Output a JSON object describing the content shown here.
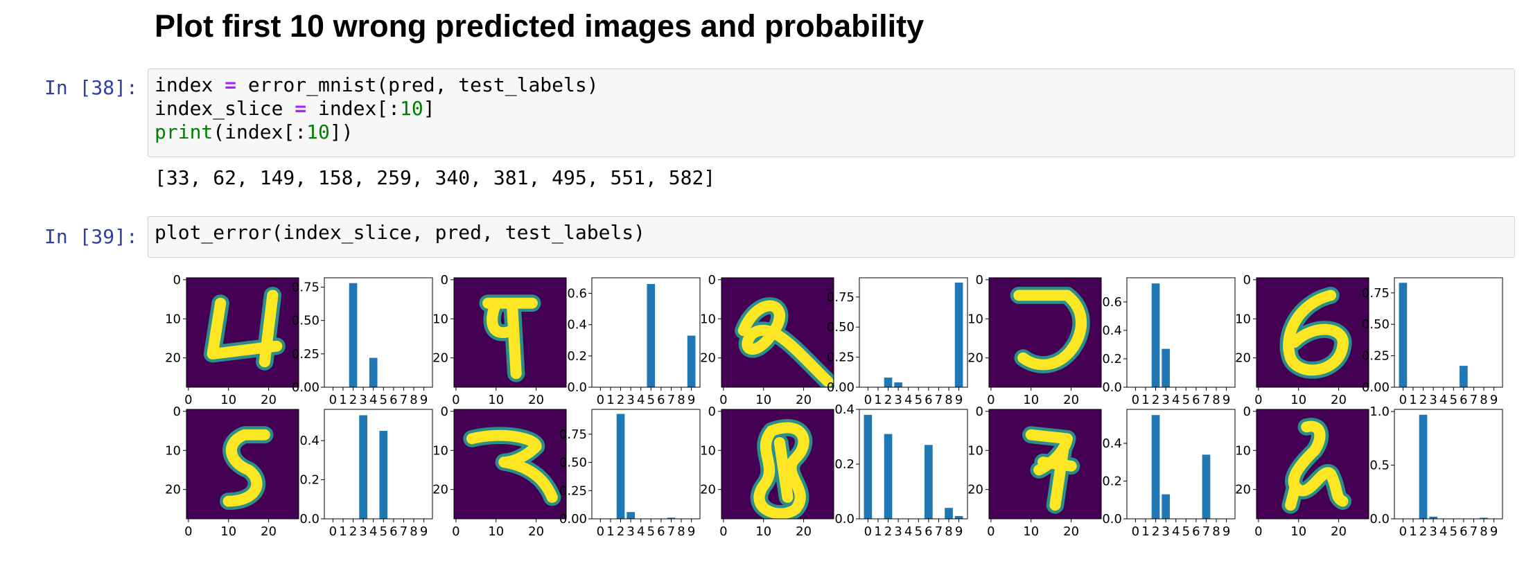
{
  "heading": "Plot first 10 wrong predicted images and probability",
  "cells": [
    {
      "prompt": "In [38]:",
      "lines": [
        [
          "index ",
          "=",
          " error_mnist(pred, test_labels)"
        ],
        [
          "index_slice ",
          "=",
          " index[:",
          "10",
          "]"
        ],
        [
          "print",
          "(index[:",
          "10",
          "])"
        ]
      ],
      "output": "[33, 62, 149, 158, 259, 340, 381, 495, 551, 582]"
    },
    {
      "prompt": "In [39]:",
      "lines": [
        [
          "plot_error(index_slice, pred, test_labels)"
        ]
      ]
    }
  ],
  "figure": {
    "image_lim": [
      -0.5,
      27.5
    ],
    "image_ticks": [
      0,
      10,
      20
    ],
    "bar_xlim": [
      -0.85,
      9.85
    ],
    "bar_xticks": [
      0,
      1,
      2,
      3,
      4,
      5,
      6,
      7,
      8,
      9
    ],
    "bar_color": "#1f77b4",
    "charts": [
      {
        "type": "bar",
        "values": [
          0,
          0,
          0.78,
          0,
          0.22,
          0,
          0,
          0,
          0,
          0
        ],
        "ylim": [
          0,
          0.82
        ],
        "yticks": [
          {
            "value": 0,
            "label": "0.00"
          },
          0.25,
          {
            "value": 0.5,
            "label": "0.50"
          },
          0.75
        ]
      },
      {
        "type": "bar",
        "values": [
          0,
          0,
          0,
          0,
          0,
          0.66,
          0,
          0,
          0,
          0.33
        ],
        "ylim": [
          0,
          0.7
        ],
        "yticks": [
          {
            "value": 0,
            "label": "0.0"
          },
          0.2,
          0.4,
          0.6
        ]
      },
      {
        "type": "bar",
        "values": [
          0,
          0,
          0.08,
          0.04,
          0,
          0,
          0,
          0,
          0,
          0.87
        ],
        "ylim": [
          0,
          0.91
        ],
        "yticks": [
          {
            "value": 0,
            "label": "0.00"
          },
          0.25,
          {
            "value": 0.5,
            "label": "0.50"
          },
          0.75
        ]
      },
      {
        "type": "bar",
        "values": [
          0,
          0,
          0.73,
          0.27,
          0,
          0,
          0,
          0,
          0,
          0
        ],
        "ylim": [
          0,
          0.77
        ],
        "yticks": [
          {
            "value": 0,
            "label": "0.0"
          },
          0.2,
          0.4,
          0.6
        ]
      },
      {
        "type": "bar",
        "values": [
          0.83,
          0,
          0,
          0,
          0,
          0,
          0.17,
          0,
          0,
          0
        ],
        "ylim": [
          0,
          0.87
        ],
        "yticks": [
          {
            "value": 0,
            "label": "0.00"
          },
          0.25,
          {
            "value": 0.5,
            "label": "0.50"
          },
          0.75
        ]
      },
      {
        "type": "bar",
        "values": [
          0,
          0,
          0,
          0.53,
          0,
          0.45,
          0,
          0,
          0,
          0
        ],
        "ylim": [
          0,
          0.56
        ],
        "yticks": [
          {
            "value": 0,
            "label": "0.0"
          },
          0.2,
          0.4
        ]
      },
      {
        "type": "bar",
        "values": [
          0,
          0,
          0.93,
          0.06,
          0,
          0,
          0,
          0.01,
          0,
          0
        ],
        "ylim": [
          0,
          0.97
        ],
        "yticks": [
          {
            "value": 0,
            "label": "0.00"
          },
          0.25,
          {
            "value": 0.5,
            "label": "0.50"
          },
          0.75
        ]
      },
      {
        "type": "bar",
        "values": [
          0.38,
          0,
          0.31,
          0,
          0,
          0,
          0.27,
          0,
          0.04,
          0.01
        ],
        "ylim": [
          0,
          0.4
        ],
        "yticks": [
          {
            "value": 0,
            "label": "0.0"
          },
          0.2,
          0.4
        ]
      },
      {
        "type": "bar",
        "values": [
          0,
          0,
          0.55,
          0.13,
          0,
          0,
          0,
          0.34,
          0,
          0
        ],
        "ylim": [
          0,
          0.58
        ],
        "yticks": [
          {
            "value": 0,
            "label": "0.0"
          },
          0.2,
          0.4
        ]
      },
      {
        "type": "bar",
        "values": [
          0,
          0,
          0.97,
          0.02,
          0,
          0,
          0,
          0,
          0.01,
          0
        ],
        "ylim": [
          0,
          1.02
        ],
        "yticks": [
          {
            "value": 0,
            "label": "0.0"
          },
          0.5,
          {
            "value": 1,
            "label": "1.0"
          }
        ]
      }
    ]
  }
}
